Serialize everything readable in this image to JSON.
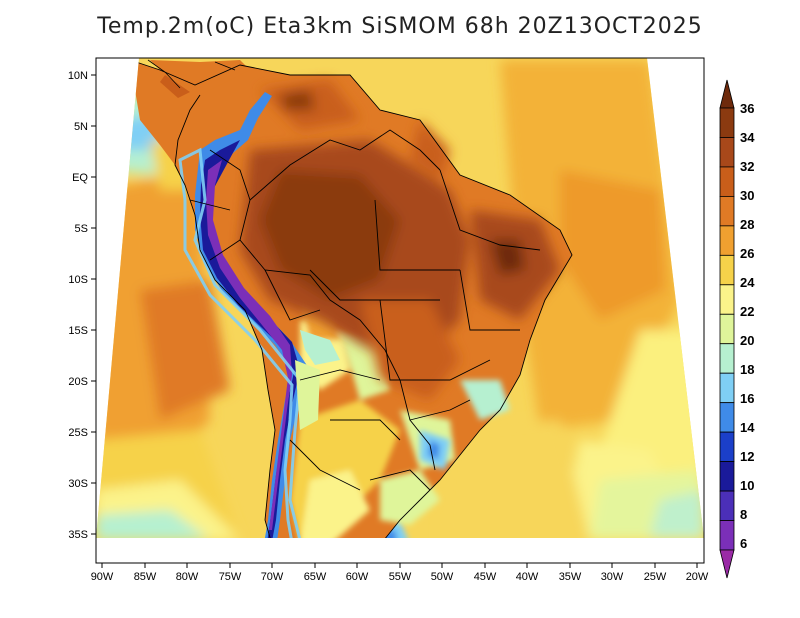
{
  "title": "Temp.2m(oC) Eta3km SiSMOM 68h 20Z13OCT2025",
  "lat_ticks": [
    "10N",
    "5N",
    "EQ",
    "5S",
    "10S",
    "15S",
    "20S",
    "25S",
    "30S",
    "35S"
  ],
  "lon_ticks": [
    "90W",
    "85W",
    "80W",
    "75W",
    "70W",
    "65W",
    "60W",
    "55W",
    "50W",
    "45W",
    "40W",
    "35W",
    "30W",
    "25W",
    "20W"
  ],
  "colorbar": {
    "labels": [
      "36",
      "34",
      "32",
      "30",
      "28",
      "26",
      "24",
      "22",
      "20",
      "18",
      "16",
      "14",
      "12",
      "10",
      "8",
      "6"
    ],
    "colors": [
      "#6e2a0c",
      "#8b3a10",
      "#a8481a",
      "#c95e1a",
      "#e07a25",
      "#f0a030",
      "#f6d24a",
      "#fbf38a",
      "#dff59a",
      "#b6f0d0",
      "#7fcff5",
      "#3f8be8",
      "#1b3fc9",
      "#1a1a9a",
      "#4b2fb8",
      "#7b2fb8",
      "#9a2aa6"
    ]
  }
}
